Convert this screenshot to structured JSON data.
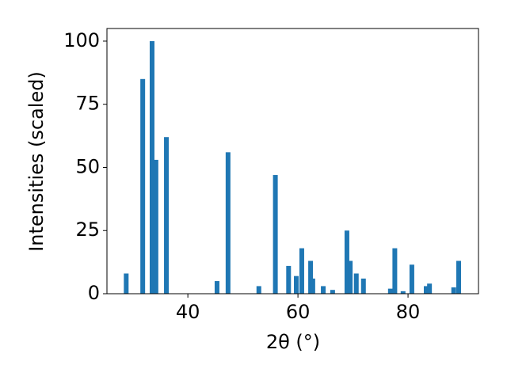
{
  "chart_data": {
    "type": "bar",
    "x_label": "2θ (°)",
    "y_label": "Intensities (scaled)",
    "x": [
      28.8,
      31.8,
      33.5,
      34.2,
      36.1,
      45.3,
      47.3,
      52.9,
      55.9,
      58.3,
      59.7,
      60.7,
      62.3,
      62.7,
      64.6,
      66.3,
      68.9,
      69.5,
      70.6,
      71.9,
      76.8,
      77.6,
      79.1,
      80.7,
      83.3,
      83.9,
      88.3,
      89.2
    ],
    "values": [
      8,
      85,
      100,
      53,
      62,
      5,
      56,
      3,
      47,
      11,
      7,
      18,
      13,
      6,
      3,
      1.5,
      25,
      13,
      8,
      6,
      2,
      18,
      1,
      11.5,
      3,
      4,
      2.5,
      13
    ],
    "color": "#1f77b4",
    "xlim": [
      25.3,
      92.8
    ],
    "xticks": [
      40,
      60,
      80
    ],
    "ylim": [
      0,
      105
    ],
    "yticks": [
      0,
      25,
      50,
      75,
      100
    ]
  }
}
